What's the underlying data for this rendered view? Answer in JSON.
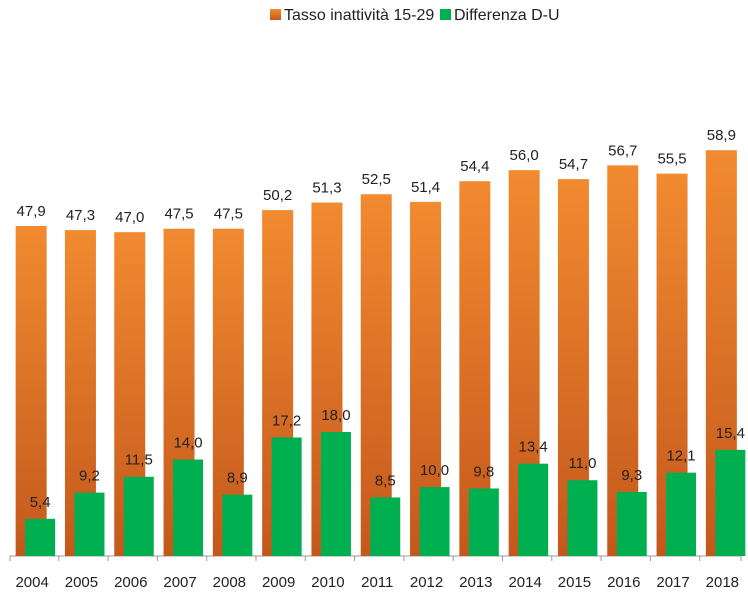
{
  "chart_data": {
    "type": "bar",
    "categories": [
      "2004",
      "2005",
      "2006",
      "2007",
      "2008",
      "2009",
      "2010",
      "2011",
      "2012",
      "2013",
      "2014",
      "2015",
      "2016",
      "2017",
      "2018"
    ],
    "series": [
      {
        "name": "Tasso inattività 15-29",
        "color": "#ed7d31",
        "values": [
          47.9,
          47.3,
          47.0,
          47.5,
          47.5,
          50.2,
          51.3,
          52.5,
          51.4,
          54.4,
          56.0,
          54.7,
          56.7,
          55.5,
          58.9
        ],
        "value_labels": [
          "47,9",
          "47,3",
          "47,0",
          "47,5",
          "47,5",
          "50,2",
          "51,3",
          "52,5",
          "51,4",
          "54,4",
          "56,0",
          "54,7",
          "56,7",
          "55,5",
          "58,9"
        ]
      },
      {
        "name": "Differenza D-U",
        "color": "#00b050",
        "values": [
          5.4,
          9.2,
          11.5,
          14.0,
          8.9,
          17.2,
          18.0,
          8.5,
          10.0,
          9.8,
          13.4,
          11.0,
          9.3,
          12.1,
          15.4
        ],
        "value_labels": [
          "5,4",
          "9,2",
          "11,5",
          "14,0",
          "8,9",
          "17,2",
          "18,0",
          "8,5",
          "10,0",
          "9,8",
          "13,4",
          "11,0",
          "9,3",
          "12,1",
          "15,4"
        ]
      }
    ],
    "ylim": [
      0,
      80
    ],
    "legend": "top"
  }
}
